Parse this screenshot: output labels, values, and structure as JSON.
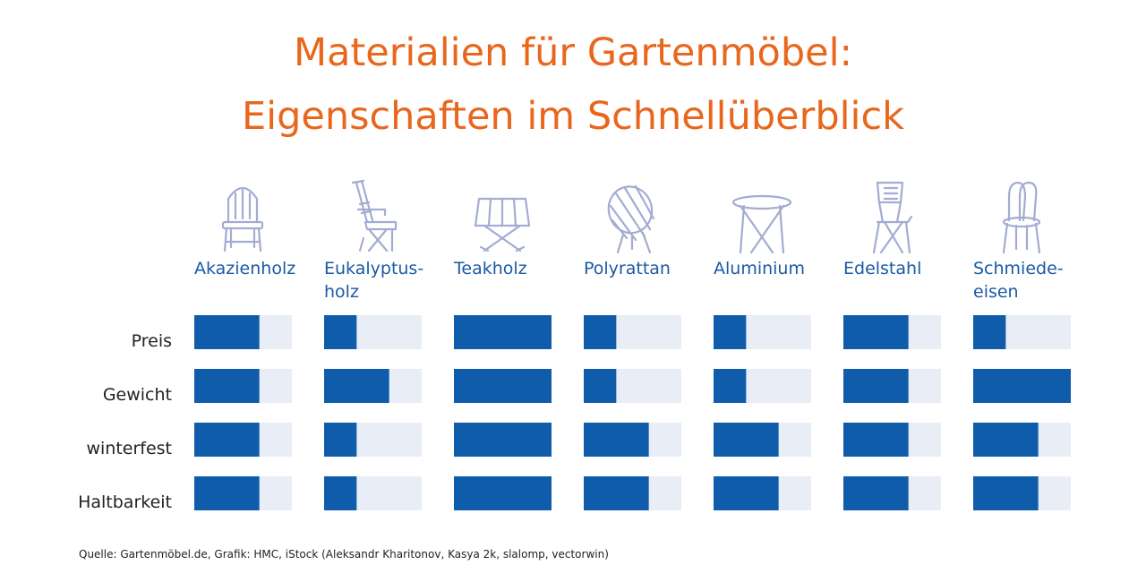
{
  "title_lines": [
    "Materialien für Gartenmöbel:",
    "Eigenschaften im Schnellüberblick"
  ],
  "source": "Quelle: Gartenmöbel.de, Grafik: HMC, iStock (Aleksandr Kharitonov, Kasya 2k, slalomp, vectorwin)",
  "colors": {
    "title": "#e8671c",
    "label": "#1a5aa4",
    "bar_fill": "#0f5cab",
    "bar_track": "#e8edf6",
    "row_label": "#222222",
    "icon_stroke": "#a3acd2"
  },
  "chart_data": {
    "type": "bar",
    "title": "Materialien für Gartenmöbel: Eigenschaften im Schnellüberblick",
    "scale_max": 3,
    "materials": [
      {
        "label_lines": [
          "Akazienholz"
        ],
        "icon": "wooden-chair-icon"
      },
      {
        "label_lines": [
          "Eukalyptus-",
          "holz"
        ],
        "icon": "deck-chair-icon"
      },
      {
        "label_lines": [
          "Teakholz"
        ],
        "icon": "teak-table-icon"
      },
      {
        "label_lines": [
          "Polyrattan"
        ],
        "icon": "papasan-chair-icon"
      },
      {
        "label_lines": [
          "Aluminium"
        ],
        "icon": "bistro-table-icon"
      },
      {
        "label_lines": [
          "Edelstahl"
        ],
        "icon": "folding-chair-icon"
      },
      {
        "label_lines": [
          "Schmiede-",
          "eisen"
        ],
        "icon": "iron-chair-icon"
      }
    ],
    "categories": [
      "Akazienholz",
      "Eukalyptusholz",
      "Teakholz",
      "Polyrattan",
      "Aluminium",
      "Edelstahl",
      "Schmiedeeisen"
    ],
    "series": [
      {
        "name": "Preis",
        "values": [
          2,
          1,
          3,
          1,
          1,
          2,
          1
        ]
      },
      {
        "name": "Gewicht",
        "values": [
          2,
          2,
          3,
          1,
          1,
          2,
          3
        ]
      },
      {
        "name": "winterfest",
        "values": [
          2,
          1,
          3,
          2,
          2,
          2,
          2
        ]
      },
      {
        "name": "Haltbarkeit",
        "values": [
          2,
          1,
          3,
          2,
          2,
          2,
          2
        ]
      }
    ]
  }
}
